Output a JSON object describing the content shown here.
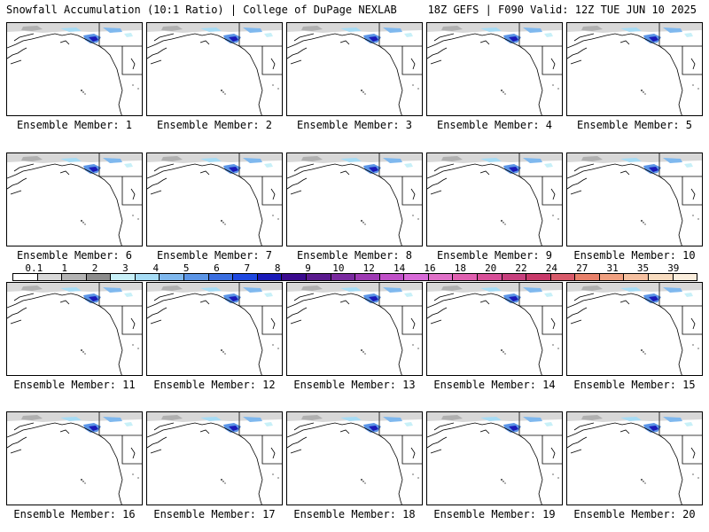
{
  "header": {
    "left_title": "Snowfall Accumulation (10:1 Ratio) | College of DuPage NEXLAB",
    "right_title": "18Z GEFS | F090 Valid: 12Z TUE JUN 10 2025"
  },
  "panels": [
    {
      "label": "Ensemble Member: 1"
    },
    {
      "label": "Ensemble Member: 2"
    },
    {
      "label": "Ensemble Member: 3"
    },
    {
      "label": "Ensemble Member: 4"
    },
    {
      "label": "Ensemble Member: 5"
    },
    {
      "label": "Ensemble Member: 6"
    },
    {
      "label": "Ensemble Member: 7"
    },
    {
      "label": "Ensemble Member: 8"
    },
    {
      "label": "Ensemble Member: 9"
    },
    {
      "label": "Ensemble Member: 10"
    },
    {
      "label": "Ensemble Member: 11"
    },
    {
      "label": "Ensemble Member: 12"
    },
    {
      "label": "Ensemble Member: 13"
    },
    {
      "label": "Ensemble Member: 14"
    },
    {
      "label": "Ensemble Member: 15"
    },
    {
      "label": "Ensemble Member: 16"
    },
    {
      "label": "Ensemble Member: 17"
    },
    {
      "label": "Ensemble Member: 18"
    },
    {
      "label": "Ensemble Member: 19"
    },
    {
      "label": "Ensemble Member: 20"
    }
  ],
  "colorbar": {
    "tick_labels": [
      "0.1",
      "1",
      "2",
      "3",
      "4",
      "5",
      "6",
      "7",
      "8",
      "9",
      "10",
      "12",
      "14",
      "16",
      "18",
      "20",
      "22",
      "24",
      "27",
      "31",
      "35",
      "39"
    ],
    "colors": [
      "#ffffff",
      "#d9d9d9",
      "#b3b3b3",
      "#8c8c8c",
      "#c8f0f8",
      "#a6dcf5",
      "#7fb8ee",
      "#5b95e6",
      "#3a6ee0",
      "#1e48e0",
      "#1a1ab8",
      "#3a0a8e",
      "#5a1a8e",
      "#7a2aa0",
      "#9e3ab4",
      "#c050c8",
      "#d86ad8",
      "#e070c8",
      "#e060b0",
      "#d84f98",
      "#c8407e",
      "#c83a6a",
      "#d85a6a",
      "#e8806a",
      "#f0a080",
      "#f5c0a0",
      "#f8dcc0",
      "#fbeedd"
    ]
  }
}
